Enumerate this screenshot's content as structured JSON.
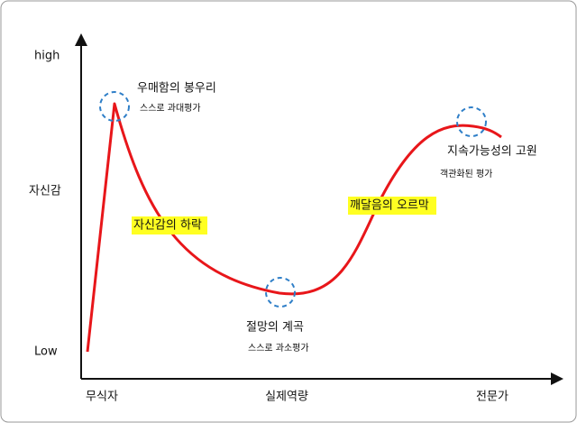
{
  "y_axis": {
    "labels": [
      "high",
      "자신감",
      "Low"
    ]
  },
  "x_axis": {
    "labels": [
      "무식자",
      "실제역량",
      "전문가"
    ]
  },
  "annotations": [
    {
      "title": "우매함의 봉우리",
      "subtitle": "스스로 과대평가"
    },
    {
      "title": "자신감의 하락"
    },
    {
      "title": "절망의 계곡",
      "subtitle": "스스로 과소평가"
    },
    {
      "title": "깨달음의 오르막"
    },
    {
      "title": "지속가능성의 고원",
      "subtitle": "객관화된 평가"
    }
  ]
}
